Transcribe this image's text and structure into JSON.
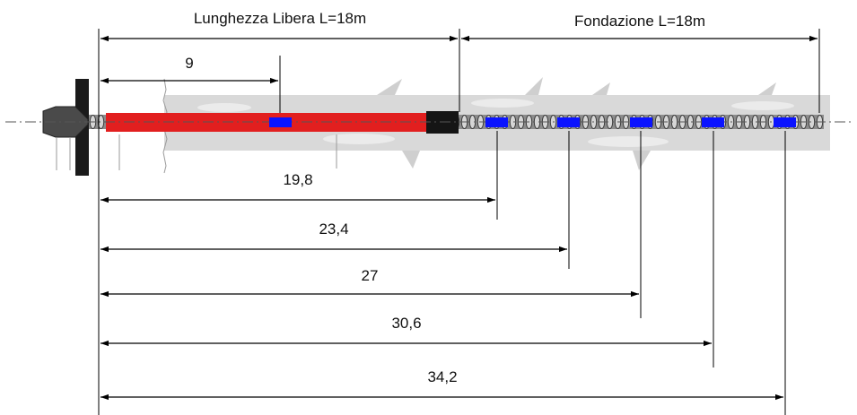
{
  "labels": {
    "free_length": "Lunghezza Libera L=18m",
    "foundation": "Fondazione  L=18m",
    "d1": "9",
    "d2": "19,8",
    "d3": "23,4",
    "d4": "27",
    "d5": "30,6",
    "d6": "34,2"
  },
  "colors": {
    "free_tendon": "#e21f1f",
    "sensor": "#0b14ff",
    "grout": "#d9d9d9",
    "line": "#000000"
  }
}
